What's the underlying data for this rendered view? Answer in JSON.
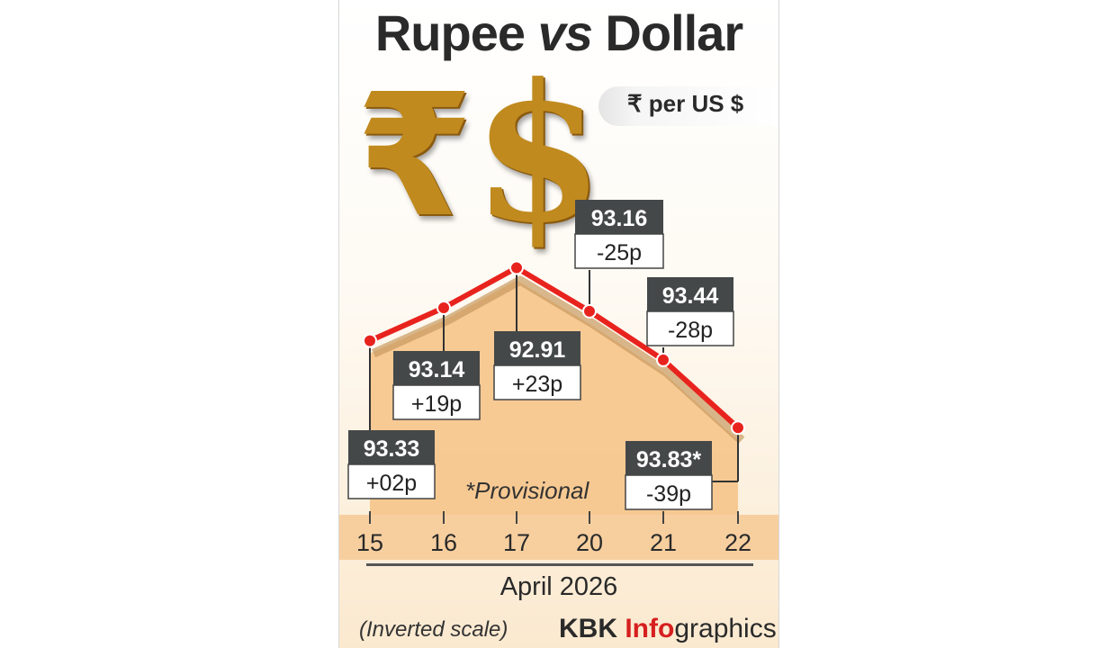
{
  "header": {
    "title_main": "Rupee ",
    "title_vs": "vs",
    "title_tail": " Dollar",
    "unit_label": "₹ per US $"
  },
  "icons": {
    "rupee": "₹",
    "dollar": "$",
    "rupee_name": "rupee-icon",
    "dollar_name": "dollar-icon"
  },
  "chart_data": {
    "type": "line",
    "title": "Rupee vs Dollar",
    "ylabel": "₹ per US $",
    "xlabel": "April 2026",
    "inverted_y": true,
    "categories": [
      "15",
      "16",
      "17",
      "20",
      "21",
      "22"
    ],
    "values": [
      93.33,
      93.14,
      92.91,
      93.16,
      93.44,
      93.83
    ],
    "value_labels": [
      "93.33",
      "93.14",
      "92.91",
      "93.16",
      "93.44",
      "93.83*"
    ],
    "change_labels": [
      "+02p",
      "+19p",
      "+23p",
      "-25p",
      "-28p",
      "-39p"
    ],
    "ylim": [
      94.3,
      92.7
    ],
    "annotation": "*Provisional",
    "footnote": "(Inverted scale)",
    "colors": {
      "line": "#e8231e",
      "area": "#f6c48a",
      "label_bg": "#454849",
      "point": "#e8231e"
    }
  },
  "footer": {
    "credit_brand": "KBK ",
    "credit_info": "Info",
    "credit_tail": "graphics"
  }
}
